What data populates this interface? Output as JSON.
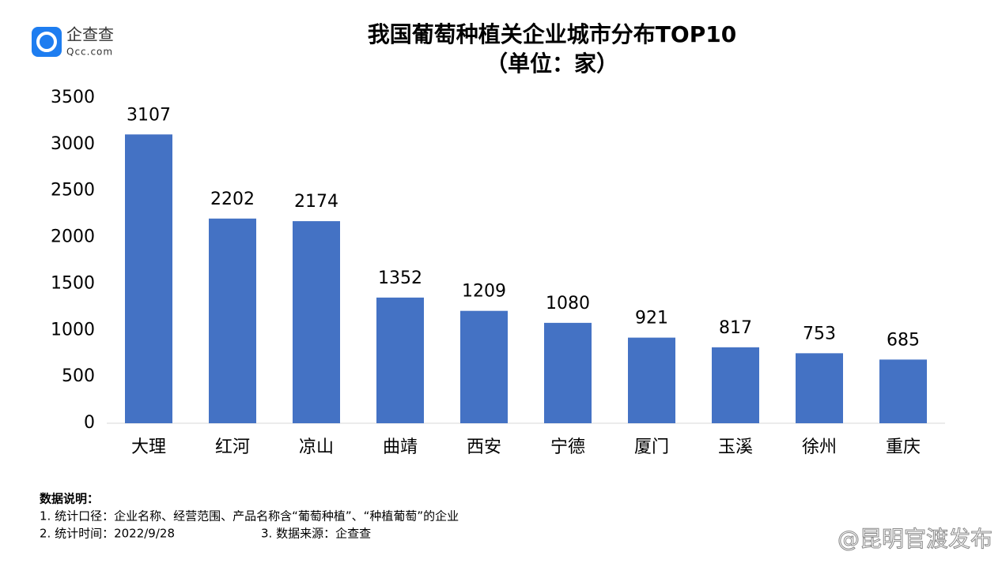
{
  "chart_data": {
    "type": "bar",
    "title": "我国葡萄种植关企业城市分布TOP10",
    "subtitle": "（单位：家）",
    "categories": [
      "大理",
      "红河",
      "凉山",
      "曲靖",
      "西安",
      "宁德",
      "厦门",
      "玉溪",
      "徐州",
      "重庆"
    ],
    "values": [
      3107,
      2202,
      2174,
      1352,
      1209,
      1080,
      921,
      817,
      753,
      685
    ],
    "color": "#4472c4",
    "ylim": [
      0,
      3500
    ],
    "yticks": [
      0,
      500,
      1000,
      1500,
      2000,
      2500,
      3000,
      3500
    ],
    "grid": false,
    "notes": {
      "heading": "数据说明：",
      "line1": "1. 统计口径：企业名称、经营范围、产品名称含“葡萄种植”、“种植葡萄”的企业",
      "line2a": "2. 统计时间：2022/9/28",
      "line2b": "3. 数据来源：企查查"
    }
  },
  "logo": {
    "name": "企查查",
    "domain": "Qcc.com"
  },
  "watermark": "@昆明官渡发布"
}
